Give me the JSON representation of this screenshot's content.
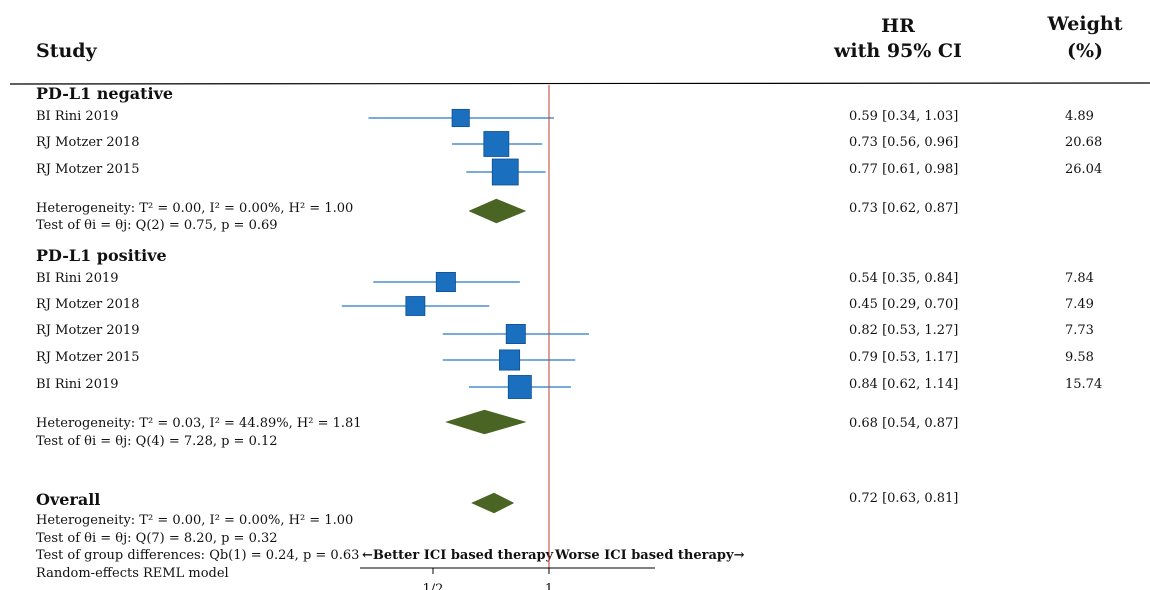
{
  "headers": {
    "study": "Study",
    "hr_line1": "HR",
    "hr_line2": "with 95% CI",
    "weight_line1": "Weight",
    "weight_line2": "(%)"
  },
  "colors": {
    "box": "#1a6fbf",
    "box_border": "#0d4f93",
    "ci_line": "#2a77c0",
    "diamond": "#4a6424",
    "reference_line": "#c0392b",
    "rule": "#000000"
  },
  "groups": [
    {
      "label": "PD-L1 negative",
      "heterogeneity_text": "Heterogeneity: T² = 0.00, I² = 0.00%, H² = 1.00",
      "test_text": "Test of θi = θj: Q(2) = 0.75, p = 0.69",
      "pooled_text": "0.73 [0.62, 0.87]"
    },
    {
      "label": "PD-L1 positive",
      "heterogeneity_text": "Heterogeneity: T² = 0.03, I² = 44.89%, H² = 1.81",
      "test_text": "Test of θi = θj: Q(4) = 7.28, p = 0.12",
      "pooled_text": "0.68 [0.54, 0.87]"
    }
  ],
  "overall": {
    "label": "Overall",
    "heterogeneity_text": "Heterogeneity: T² = 0.00, I² = 0.00%, H² = 1.00",
    "test_text": "Test of θi = θj: Q(7) = 8.20, p = 0.32",
    "group_diff_text": "Test of group differences: Qb(1) = 0.24, p = 0.63",
    "model_text": "Random-effects REML model",
    "pooled_text": "0.72 [0.63, 0.81]"
  },
  "direction_labels": {
    "left": "←Better ICI based therapy",
    "right": "Worse ICI based therapy→"
  },
  "chart_data": {
    "type": "forest",
    "scale": "log",
    "reference_line": 1,
    "x_ticks": [
      {
        "value": 0.5,
        "label": "1/2"
      },
      {
        "value": 1,
        "label": "1"
      }
    ],
    "studies": [
      {
        "group": 0,
        "study": "BI Rini 2019",
        "hr": 0.59,
        "lo": 0.34,
        "hi": 1.03,
        "ci_text": "0.59 [0.34, 1.03]",
        "weight": 4.89,
        "weight_text": "4.89"
      },
      {
        "group": 0,
        "study": "RJ Motzer 2018",
        "hr": 0.73,
        "lo": 0.56,
        "hi": 0.96,
        "ci_text": "0.73 [0.56, 0.96]",
        "weight": 20.68,
        "weight_text": "20.68"
      },
      {
        "group": 0,
        "study": "RJ Motzer 2015",
        "hr": 0.77,
        "lo": 0.61,
        "hi": 0.98,
        "ci_text": "0.77 [0.61, 0.98]",
        "weight": 26.04,
        "weight_text": "26.04"
      },
      {
        "group": 1,
        "study": "BI Rini 2019",
        "hr": 0.54,
        "lo": 0.35,
        "hi": 0.84,
        "ci_text": "0.54 [0.35, 0.84]",
        "weight": 7.84,
        "weight_text": "7.84"
      },
      {
        "group": 1,
        "study": "RJ Motzer 2018",
        "hr": 0.45,
        "lo": 0.29,
        "hi": 0.7,
        "ci_text": "0.45 [0.29, 0.70]",
        "weight": 7.49,
        "weight_text": "7.49"
      },
      {
        "group": 1,
        "study": "RJ Motzer 2019",
        "hr": 0.82,
        "lo": 0.53,
        "hi": 1.27,
        "ci_text": "0.82 [0.53, 1.27]",
        "weight": 7.73,
        "weight_text": "7.73"
      },
      {
        "group": 1,
        "study": "RJ Motzer 2015",
        "hr": 0.79,
        "lo": 0.53,
        "hi": 1.17,
        "ci_text": "0.79 [0.53, 1.17]",
        "weight": 9.58,
        "weight_text": "9.58"
      },
      {
        "group": 1,
        "study": "BI Rini 2019",
        "hr": 0.84,
        "lo": 0.62,
        "hi": 1.14,
        "ci_text": "0.84 [0.62, 1.14]",
        "weight": 15.74,
        "weight_text": "15.74"
      }
    ],
    "pooled": [
      {
        "name": "PD-L1 negative",
        "hr": 0.73,
        "lo": 0.62,
        "hi": 0.87
      },
      {
        "name": "PD-L1 positive",
        "hr": 0.68,
        "lo": 0.54,
        "hi": 0.87
      },
      {
        "name": "Overall",
        "hr": 0.72,
        "lo": 0.63,
        "hi": 0.81
      }
    ]
  }
}
